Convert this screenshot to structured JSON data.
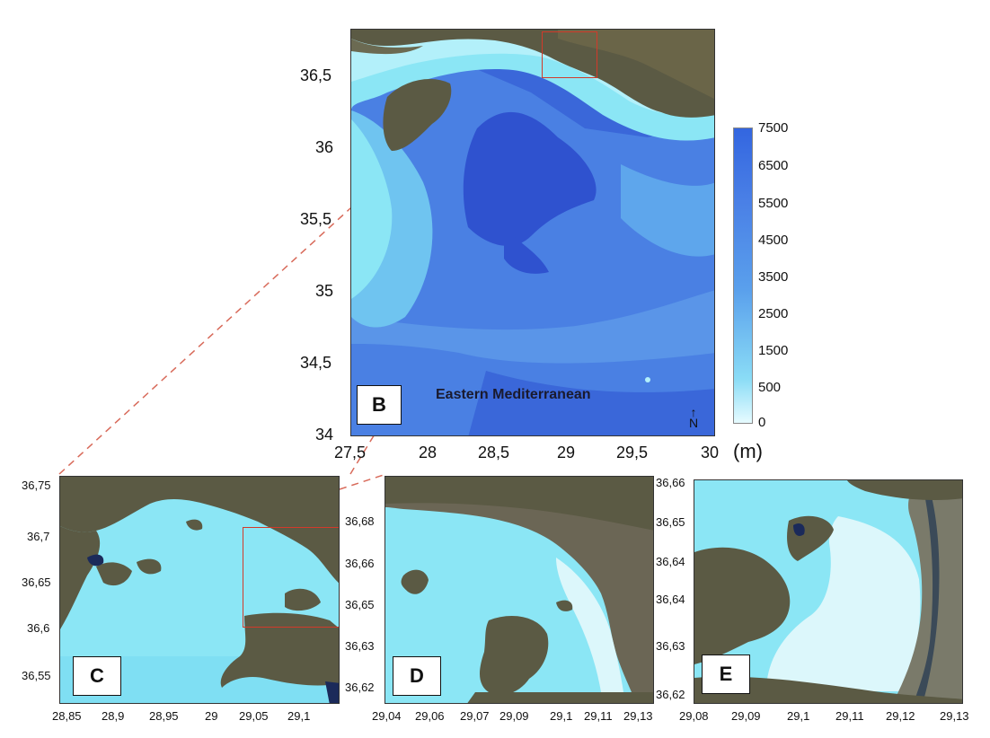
{
  "panel_b": {
    "label": "B",
    "sea_name": "Eastern Mediterranean",
    "y_ticks": [
      "36,5",
      "36",
      "35,5",
      "35",
      "34,5",
      "34"
    ],
    "x_ticks": [
      "27,5",
      "28",
      "28,5",
      "29",
      "29,5",
      "30"
    ],
    "north_symbol": "N"
  },
  "colorbar": {
    "ticks": [
      "7500",
      "6500",
      "5500",
      "4500",
      "3500",
      "2500",
      "1500",
      "500",
      "0"
    ],
    "unit": "(m)",
    "color_top": "#3366e0",
    "color_bottom": "#e6fbff"
  },
  "panel_c": {
    "label": "C",
    "y_ticks": [
      "36,75",
      "36,7",
      "36,65",
      "36,6",
      "36,55"
    ],
    "x_ticks": [
      "28,85",
      "28,9",
      "28,95",
      "29",
      "29,05",
      "29,1"
    ]
  },
  "panel_d": {
    "label": "D",
    "y_ticks": [
      "36,68",
      "36,66",
      "36,65",
      "36,63",
      "36,62"
    ],
    "x_ticks": [
      "29,04",
      "29,06",
      "29,07",
      "29,09",
      "29,1",
      "29,11",
      "29,13"
    ]
  },
  "panel_e": {
    "label": "E",
    "y_ticks": [
      "36,66",
      "36,65",
      "36,64",
      "36,64",
      "36,63",
      "36,62"
    ],
    "x_ticks": [
      "29,08",
      "29,09",
      "29,1",
      "29,11",
      "29,12",
      "29,13"
    ]
  },
  "colors": {
    "land": "#5b5a44",
    "shallow": "#8be6f5",
    "mid": "#5aa8ec",
    "deep": "#3a67d9",
    "deepest": "#2f52cf",
    "zoom_box": "#d23a2a"
  }
}
